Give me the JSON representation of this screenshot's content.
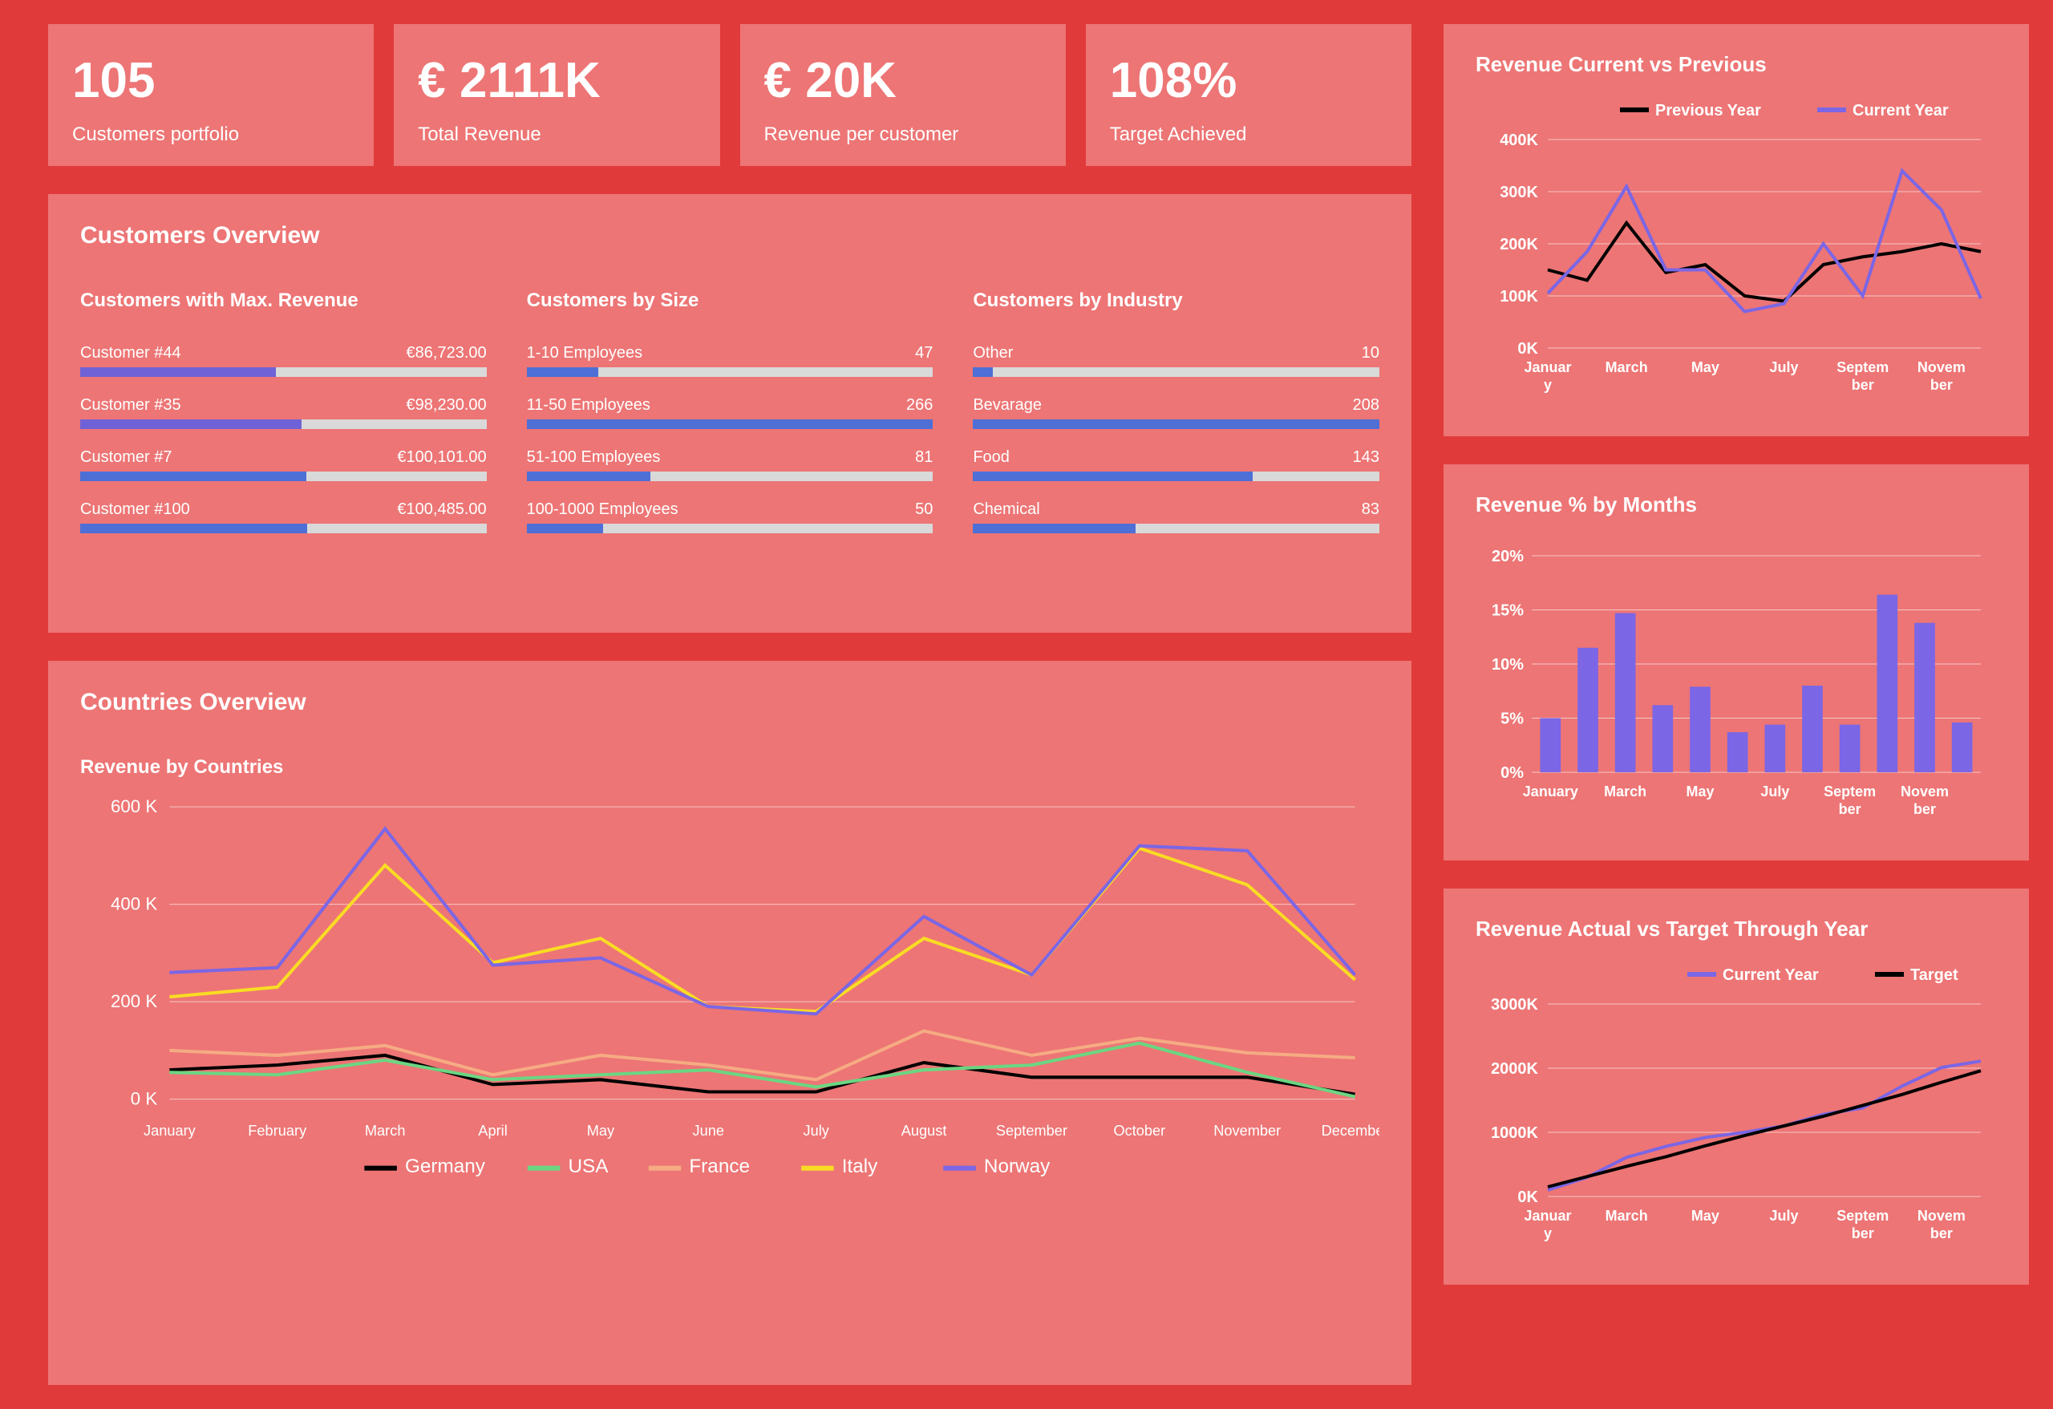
{
  "colors": {
    "bg": "#e13a3a",
    "panel": "#ed7575",
    "text": "#ffffff",
    "bar_track": "#d9d9d9",
    "bar_blue": "#4d6fd6",
    "bar_purple": "#6f62d6",
    "line_black": "#000000",
    "line_purple": "#7b66e5",
    "line_yellow": "#f9dc24",
    "line_orange": "#f6ab83",
    "line_green": "#6bd682"
  },
  "kpis": [
    {
      "value": "105",
      "label": "Customers portfolio"
    },
    {
      "value": "€ 2111K",
      "label": "Total Revenue"
    },
    {
      "value": "€ 20K",
      "label": "Revenue per customer"
    },
    {
      "value": "108%",
      "label": "Target Achieved"
    }
  ],
  "customers_overview": {
    "title": "Customers Overview",
    "max_rev": {
      "title": "Customers with Max. Revenue",
      "max": 100485,
      "rows": [
        {
          "label": "Customer #44",
          "value_text": "€86,723.00",
          "value": 86723,
          "color": "#6f62d6"
        },
        {
          "label": "Customer #35",
          "value_text": "€98,230.00",
          "value": 98230,
          "color": "#6f62d6"
        },
        {
          "label": "Customer #7",
          "value_text": "€100,101.00",
          "value": 100101,
          "color": "#4d6fd6"
        },
        {
          "label": "Customer #100",
          "value_text": "€100,485.00",
          "value": 100485,
          "color": "#4d6fd6"
        }
      ]
    },
    "by_size": {
      "title": "Customers by Size",
      "max": 266,
      "rows": [
        {
          "label": "1-10 Employees",
          "value_text": "47",
          "value": 47,
          "color": "#4d6fd6"
        },
        {
          "label": "11-50 Employees",
          "value_text": "266",
          "value": 266,
          "color": "#4d6fd6"
        },
        {
          "label": "51-100 Employees",
          "value_text": "81",
          "value": 81,
          "color": "#4d6fd6"
        },
        {
          "label": "100-1000 Employees",
          "value_text": "50",
          "value": 50,
          "color": "#4d6fd6"
        }
      ]
    },
    "by_industry": {
      "title": "Customers by Industry",
      "max": 208,
      "rows": [
        {
          "label": "Other",
          "value_text": "10",
          "value": 10,
          "color": "#4d6fd6"
        },
        {
          "label": "Bevarage",
          "value_text": "208",
          "value": 208,
          "color": "#4d6fd6"
        },
        {
          "label": "Food",
          "value_text": "143",
          "value": 143,
          "color": "#4d6fd6"
        },
        {
          "label": "Chemical",
          "value_text": "83",
          "value": 83,
          "color": "#4d6fd6"
        }
      ]
    }
  },
  "countries_overview": {
    "title": "Countries Overview",
    "subtitle": "Revenue by Countries",
    "months": [
      "January",
      "February",
      "March",
      "April",
      "May",
      "June",
      "July",
      "August",
      "September",
      "October",
      "November",
      "December"
    ],
    "ylim": [
      0,
      600
    ],
    "yticks": [
      0,
      200,
      400,
      600
    ],
    "ytick_labels": [
      "0 K",
      "200 K",
      "400 K",
      "600 K"
    ],
    "series": [
      {
        "name": "Germany",
        "color": "#000000",
        "values": [
          60,
          70,
          90,
          30,
          40,
          15,
          15,
          75,
          45,
          45,
          45,
          10
        ]
      },
      {
        "name": "USA",
        "color": "#6bd682",
        "values": [
          55,
          50,
          80,
          40,
          50,
          60,
          25,
          60,
          70,
          115,
          55,
          5
        ]
      },
      {
        "name": "France",
        "color": "#f6ab83",
        "values": [
          100,
          90,
          110,
          50,
          90,
          70,
          40,
          140,
          90,
          125,
          95,
          85
        ]
      },
      {
        "name": "Italy",
        "color": "#f9dc24",
        "values": [
          210,
          230,
          480,
          280,
          330,
          190,
          180,
          330,
          255,
          515,
          440,
          245
        ]
      },
      {
        "name": "Norway",
        "color": "#7b66e5",
        "values": [
          260,
          270,
          555,
          275,
          290,
          190,
          175,
          375,
          255,
          520,
          510,
          255
        ]
      }
    ]
  },
  "rev_curr_prev": {
    "title": "Revenue Current vs Previous",
    "months": [
      "January",
      "February",
      "March",
      "April",
      "May",
      "June",
      "July",
      "August",
      "September",
      "October",
      "November",
      "December"
    ],
    "x_labels": [
      {
        "line1": "Januar",
        "line2": "y"
      },
      {
        "line1": "March",
        "line2": ""
      },
      {
        "line1": "May",
        "line2": ""
      },
      {
        "line1": "July",
        "line2": ""
      },
      {
        "line1": "Septem",
        "line2": "ber"
      },
      {
        "line1": "Novem",
        "line2": "ber"
      }
    ],
    "x_label_idx": [
      0,
      2,
      4,
      6,
      8,
      10
    ],
    "ylim": [
      0,
      400
    ],
    "yticks": [
      0,
      100,
      200,
      300,
      400
    ],
    "ytick_labels": [
      "0K",
      "100K",
      "200K",
      "300K",
      "400K"
    ],
    "series": [
      {
        "name": "Previous Year",
        "color": "#000000",
        "values": [
          150,
          130,
          240,
          145,
          160,
          100,
          90,
          160,
          175,
          185,
          200,
          185
        ]
      },
      {
        "name": "Current Year",
        "color": "#7b66e5",
        "values": [
          105,
          185,
          310,
          150,
          150,
          70,
          85,
          200,
          100,
          340,
          265,
          95
        ]
      }
    ]
  },
  "rev_pct_months": {
    "title": "Revenue % by Months",
    "months": [
      "January",
      "February",
      "March",
      "April",
      "May",
      "June",
      "July",
      "August",
      "September",
      "October",
      "November",
      "December"
    ],
    "x_labels": [
      {
        "line1": "January",
        "line2": ""
      },
      {
        "line1": "March",
        "line2": ""
      },
      {
        "line1": "May",
        "line2": ""
      },
      {
        "line1": "July",
        "line2": ""
      },
      {
        "line1": "Septem",
        "line2": "ber"
      },
      {
        "line1": "Novem",
        "line2": "ber"
      }
    ],
    "x_label_idx": [
      0,
      2,
      4,
      6,
      8,
      10
    ],
    "ylim": [
      0,
      20
    ],
    "yticks": [
      0,
      5,
      10,
      15,
      20
    ],
    "ytick_labels": [
      "0%",
      "5%",
      "10%",
      "15%",
      "20%"
    ],
    "bar_color": "#7b66e5",
    "values": [
      5,
      11.5,
      14.7,
      6.2,
      7.9,
      3.7,
      4.4,
      8,
      4.4,
      16.4,
      13.8,
      4.6
    ]
  },
  "rev_actual_target": {
    "title": "Revenue Actual vs Target Through Year",
    "months": [
      "January",
      "February",
      "March",
      "April",
      "May",
      "June",
      "July",
      "August",
      "September",
      "October",
      "November",
      "December"
    ],
    "x_labels": [
      {
        "line1": "Januar",
        "line2": "y"
      },
      {
        "line1": "March",
        "line2": ""
      },
      {
        "line1": "May",
        "line2": ""
      },
      {
        "line1": "July",
        "line2": ""
      },
      {
        "line1": "Septem",
        "line2": "ber"
      },
      {
        "line1": "Novem",
        "line2": "ber"
      }
    ],
    "x_label_idx": [
      0,
      2,
      4,
      6,
      8,
      10
    ],
    "ylim": [
      0,
      3000
    ],
    "yticks": [
      0,
      1000,
      2000,
      3000
    ],
    "ytick_labels": [
      "0K",
      "1000K",
      "2000K",
      "3000K"
    ],
    "series": [
      {
        "name": "Current Year",
        "color": "#7b66e5",
        "values": [
          100,
          300,
          610,
          780,
          920,
          1000,
          1100,
          1280,
          1380,
          1720,
          2010,
          2110
        ]
      },
      {
        "name": "Target",
        "color": "#000000",
        "values": [
          150,
          310,
          470,
          620,
          790,
          950,
          1100,
          1250,
          1420,
          1590,
          1780,
          1960
        ]
      }
    ]
  }
}
